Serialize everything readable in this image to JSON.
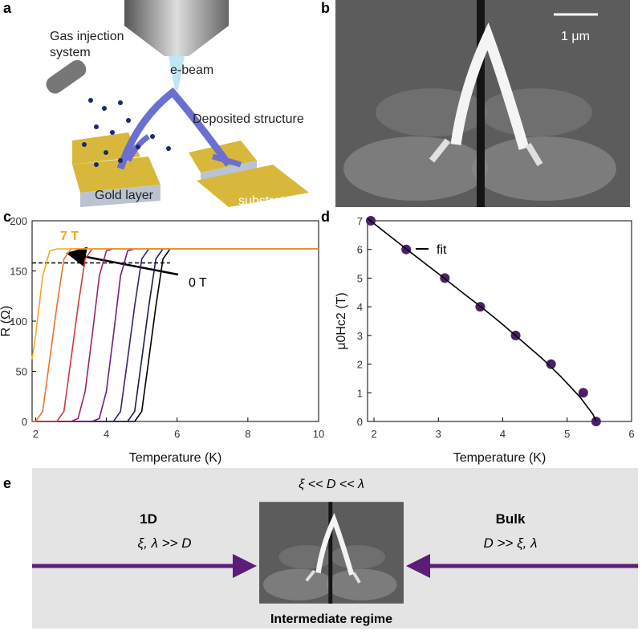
{
  "panel_labels": [
    "a",
    "b",
    "c",
    "d",
    "e"
  ],
  "panel_a": {
    "gas_injection": "Gas injection system",
    "beam": "e-beam",
    "structure": "Deposited structure",
    "gold": "Gold layer",
    "substrate": "substrate"
  },
  "panel_b": {
    "scale_bar": "1 μm"
  },
  "chart_data": [
    {
      "type": "line",
      "xlabel": "Temperature (K)",
      "ylabel": "R (Ω)",
      "xlim": [
        1.9,
        10
      ],
      "ylim": [
        0,
        200
      ],
      "xticks": [
        2,
        4,
        6,
        8,
        10
      ],
      "yticks": [
        0,
        50,
        100,
        150,
        200
      ],
      "x": [
        1.9,
        2.0,
        2.2,
        2.4,
        2.6,
        2.8,
        3.0,
        3.2,
        3.4,
        3.6,
        3.8,
        4.0,
        4.2,
        4.4,
        4.6,
        4.8,
        5.0,
        5.2,
        5.4,
        5.6,
        5.8,
        6.0,
        8.0,
        10.0
      ],
      "series": [
        {
          "name": "0 T",
          "color": "#000000",
          "values": [
            0,
            0,
            0,
            0,
            0,
            0,
            0,
            0,
            0,
            0,
            0,
            0,
            0,
            0,
            0,
            0,
            10,
            62,
            115,
            162,
            172,
            172,
            172,
            172
          ]
        },
        {
          "color": "#1c1c4e",
          "values": [
            0,
            0,
            0,
            0,
            0,
            0,
            0,
            0,
            0,
            0,
            0,
            0,
            0,
            0,
            0,
            10,
            62,
            115,
            162,
            172,
            172,
            172,
            172,
            172
          ]
        },
        {
          "color": "#3d1f6e",
          "values": [
            0,
            0,
            0,
            0,
            0,
            0,
            0,
            0,
            0,
            0,
            0,
            0,
            0,
            10,
            62,
            115,
            162,
            172,
            172,
            172,
            172,
            172,
            172,
            172
          ]
        },
        {
          "color": "#6c1f7c",
          "values": [
            0,
            0,
            0,
            0,
            0,
            0,
            0,
            0,
            0,
            0,
            3,
            30,
            86,
            145,
            170,
            172,
            172,
            172,
            172,
            172,
            172,
            172,
            172,
            172
          ]
        },
        {
          "color": "#9c2366",
          "values": [
            0,
            0,
            0,
            0,
            0,
            0,
            0,
            3,
            30,
            86,
            145,
            170,
            172,
            172,
            172,
            172,
            172,
            172,
            172,
            172,
            172,
            172,
            172,
            172
          ]
        },
        {
          "color": "#cc3b3b",
          "values": [
            0,
            0,
            0,
            0,
            0,
            10,
            62,
            115,
            162,
            172,
            172,
            172,
            172,
            172,
            172,
            172,
            172,
            172,
            172,
            172,
            172,
            172,
            172,
            172
          ]
        },
        {
          "color": "#e8742a",
          "values": [
            0,
            0,
            10,
            62,
            115,
            162,
            172,
            172,
            172,
            172,
            172,
            172,
            172,
            172,
            172,
            172,
            172,
            172,
            172,
            172,
            172,
            172,
            172,
            172
          ]
        },
        {
          "name": "7 T",
          "color": "#f5a623",
          "values": [
            62,
            86,
            145,
            170,
            172,
            172,
            172,
            172,
            172,
            172,
            172,
            172,
            172,
            172,
            172,
            172,
            172,
            172,
            172,
            172,
            172,
            172,
            172,
            172
          ]
        }
      ],
      "reference_line": {
        "y": 158,
        "x": [
          1.9,
          5.8
        ]
      }
    },
    {
      "type": "scatter",
      "xlabel": "Temperature (K)",
      "ylabel": "μ0Hc2 (T)",
      "xlim": [
        1.9,
        6
      ],
      "ylim": [
        0,
        7
      ],
      "xticks": [
        2,
        3,
        4,
        5,
        6
      ],
      "yticks": [
        0,
        1,
        2,
        3,
        4,
        5,
        6,
        7
      ],
      "legend": "upper left",
      "series": [
        {
          "color": "#4b1f6b",
          "x": [
            1.95,
            2.5,
            3.1,
            3.65,
            4.2,
            4.75,
            5.25,
            5.45
          ],
          "values": [
            7,
            6,
            5,
            4,
            3,
            2,
            1,
            0
          ]
        },
        {
          "name": "fit",
          "type": "line",
          "color": "#000000",
          "x": [
            1.9,
            2.2,
            2.5,
            2.8,
            3.1,
            3.4,
            3.7,
            4.0,
            4.3,
            4.6,
            4.9,
            5.2,
            5.4,
            5.45
          ],
          "values": [
            7.08,
            6.55,
            6.02,
            5.5,
            4.98,
            4.45,
            3.93,
            3.38,
            2.8,
            2.22,
            1.57,
            0.85,
            0.25,
            0
          ]
        }
      ]
    }
  ],
  "panel_e": {
    "top": "ξ << D << λ",
    "left_title": "1D",
    "left_text": "ξ, λ >> D",
    "right_title": "Bulk",
    "right_text": "D >> ξ, λ",
    "bottom": "Intermediate regime"
  }
}
